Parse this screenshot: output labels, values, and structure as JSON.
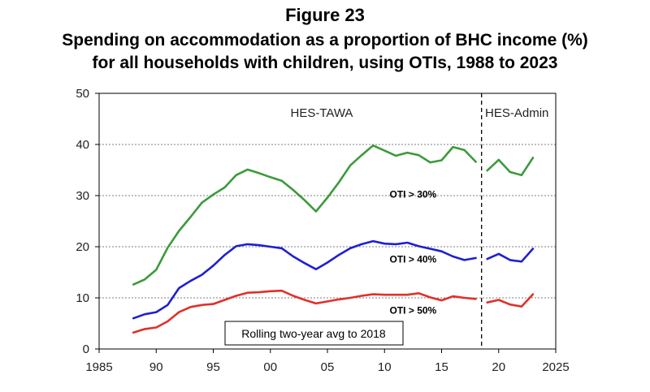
{
  "chart_data": {
    "type": "line",
    "title": "Figure 23",
    "subtitle_lines": [
      "Spending on accommodation as a proportion of BHC income (%)",
      "for all households with children, using OTIs, 1988 to 2023"
    ],
    "xlim": [
      1985,
      2025
    ],
    "ylim": [
      0,
      50
    ],
    "x_ticks": [
      1985,
      1990,
      1995,
      2000,
      2005,
      2010,
      2015,
      2020,
      2025
    ],
    "x_tick_labels": [
      "1985",
      "90",
      "95",
      "00",
      "05",
      "10",
      "15",
      "20",
      "2025"
    ],
    "y_ticks": [
      0,
      10,
      20,
      30,
      40,
      50
    ],
    "y_tick_labels": [
      "0",
      "10",
      "20",
      "30",
      "40",
      "50"
    ],
    "gridlines": "horizontal dotted",
    "divider_x": 2018.5,
    "region_labels": [
      "HES-TAWA",
      "HES-Admin"
    ],
    "note": "Rolling two-year avg to 2018",
    "series": [
      {
        "name": "OTI > 30%",
        "color": "#3b9a3b",
        "segments": [
          {
            "x": [
              1988,
              1989,
              1990,
              1991,
              1992,
              1993,
              1994,
              1995,
              1996,
              1997,
              1998,
              1999,
              2000,
              2001,
              2002,
              2003,
              2004,
              2005,
              2006,
              2007,
              2008,
              2009,
              2010,
              2011,
              2012,
              2013,
              2014,
              2015,
              2016,
              2017,
              2018
            ],
            "y": [
              12.6,
              13.6,
              15.5,
              19.8,
              23.1,
              25.8,
              28.6,
              30.2,
              31.6,
              34.0,
              35.1,
              34.4,
              33.6,
              32.9,
              31.1,
              29.1,
              26.9,
              29.6,
              32.6,
              35.9,
              37.9,
              39.8,
              38.8,
              37.8,
              38.4,
              37.9,
              36.5,
              36.9,
              39.5,
              38.9,
              36.6
            ]
          },
          {
            "x": [
              2019,
              2020,
              2021,
              2022,
              2023
            ],
            "y": [
              34.9,
              37.0,
              34.6,
              34.0,
              37.4
            ]
          }
        ]
      },
      {
        "name": "OTI > 40%",
        "color": "#1f1fd1",
        "segments": [
          {
            "x": [
              1988,
              1989,
              1990,
              1991,
              1992,
              1993,
              1994,
              1995,
              1996,
              1997,
              1998,
              1999,
              2000,
              2001,
              2002,
              2003,
              2004,
              2005,
              2006,
              2007,
              2008,
              2009,
              2010,
              2011,
              2012,
              2013,
              2014,
              2015,
              2016,
              2017,
              2018
            ],
            "y": [
              6.0,
              6.8,
              7.2,
              8.6,
              11.9,
              13.3,
              14.5,
              16.3,
              18.4,
              20.1,
              20.5,
              20.3,
              20.0,
              19.7,
              18.1,
              16.8,
              15.6,
              16.9,
              18.4,
              19.7,
              20.5,
              21.1,
              20.6,
              20.5,
              20.8,
              20.1,
              19.6,
              19.1,
              18.1,
              17.4,
              17.8
            ]
          },
          {
            "x": [
              2019,
              2020,
              2021,
              2022,
              2023
            ],
            "y": [
              17.6,
              18.6,
              17.4,
              17.1,
              19.6
            ]
          }
        ]
      },
      {
        "name": "OTI > 50%",
        "color": "#e0302a",
        "segments": [
          {
            "x": [
              1988,
              1989,
              1990,
              1991,
              1992,
              1993,
              1994,
              1995,
              1996,
              1997,
              1998,
              1999,
              2000,
              2001,
              2002,
              2003,
              2004,
              2005,
              2006,
              2007,
              2008,
              2009,
              2010,
              2011,
              2012,
              2013,
              2014,
              2015,
              2016,
              2017,
              2018
            ],
            "y": [
              3.2,
              3.9,
              4.2,
              5.4,
              7.2,
              8.2,
              8.6,
              8.8,
              9.6,
              10.4,
              11.0,
              11.1,
              11.3,
              11.4,
              10.4,
              9.6,
              8.9,
              9.3,
              9.7,
              10.0,
              10.4,
              10.7,
              10.6,
              10.6,
              10.6,
              10.9,
              10.1,
              9.5,
              10.3,
              10.0,
              9.8
            ]
          },
          {
            "x": [
              2019,
              2020,
              2021,
              2022,
              2023
            ],
            "y": [
              9.1,
              9.6,
              8.7,
              8.3,
              10.7
            ]
          }
        ]
      }
    ]
  }
}
